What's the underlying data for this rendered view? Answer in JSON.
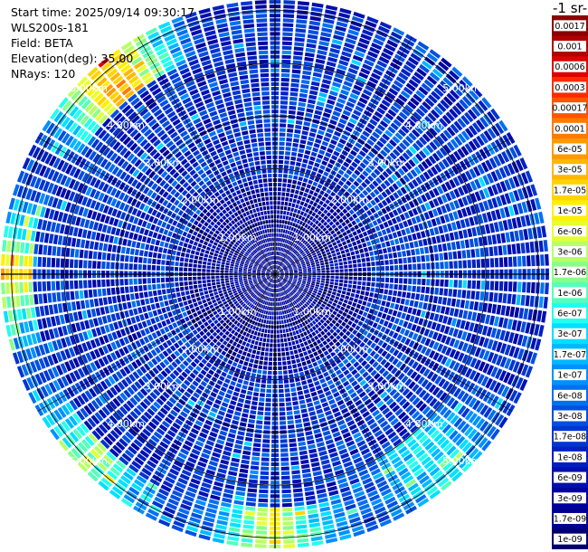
{
  "info": {
    "start_time": "Start time: 2025/09/14 09:30:17",
    "instrument": "WLS200s-181",
    "field": "Field: BETA",
    "elevation": "Elevation(deg): 35.00",
    "nrays": "NRays: 120"
  },
  "colorbar": {
    "title_fragment": "-1 sr-",
    "labels": [
      "0.0017",
      "0.001",
      "0.0006",
      "0.0003",
      "0.00017",
      "0.0001",
      "6e-05",
      "3e-05",
      "1.7e-05",
      "1e-05",
      "6e-06",
      "3e-06",
      "1.7e-06",
      "1e-06",
      "6e-07",
      "3e-07",
      "1.7e-07",
      "1e-07",
      "6e-08",
      "3e-08",
      "1.7e-08",
      "1e-08",
      "6e-09",
      "3e-09",
      "1.7e-09",
      "1e-09"
    ],
    "colors": [
      "#8b0000",
      "#b00000",
      "#dd0000",
      "#ff2a00",
      "#ff5500",
      "#ff7a00",
      "#ff9a00",
      "#ffb700",
      "#ffd400",
      "#ffef00",
      "#e6ff33",
      "#b8ff66",
      "#88ff88",
      "#55ffbb",
      "#22ffee",
      "#00e0ff",
      "#00b8ff",
      "#0090ff",
      "#0070f0",
      "#0050e0",
      "#0035d0",
      "#001fc0",
      "#000fb0",
      "#0000a0",
      "#000090",
      "#000070"
    ]
  },
  "chart_data": {
    "type": "heatmap",
    "projection": "polar-ppi",
    "field": "BETA",
    "nrays": 120,
    "elevation_deg": 35.0,
    "range_rings_km": [
      1,
      2,
      3,
      4,
      5
    ],
    "ring_labels": [
      "1.00km",
      "2.00km",
      "3.00km",
      "4.00km",
      "5.00km"
    ],
    "max_range_km": 5.2,
    "colorscale": "log10",
    "value_min": 1e-09,
    "value_max": 0.0017,
    "background_log10": -7.8,
    "features": [
      {
        "azimuth_deg": 270,
        "range_km": [
          4.6,
          5.2
        ],
        "log10": -5.0
      },
      {
        "azimuth_deg": 320,
        "range_km": [
          4.3,
          5.2
        ],
        "log10": -4.3
      },
      {
        "azimuth_deg": 225,
        "range_km": [
          4.6,
          5.2
        ],
        "log10": -5.6
      },
      {
        "azimuth_deg": 180,
        "range_km": [
          4.4,
          5.2
        ],
        "log10": -5.3
      },
      {
        "azimuth_deg": 140,
        "range_km": [
          4.0,
          5.2
        ],
        "log10": -6.3
      }
    ]
  }
}
